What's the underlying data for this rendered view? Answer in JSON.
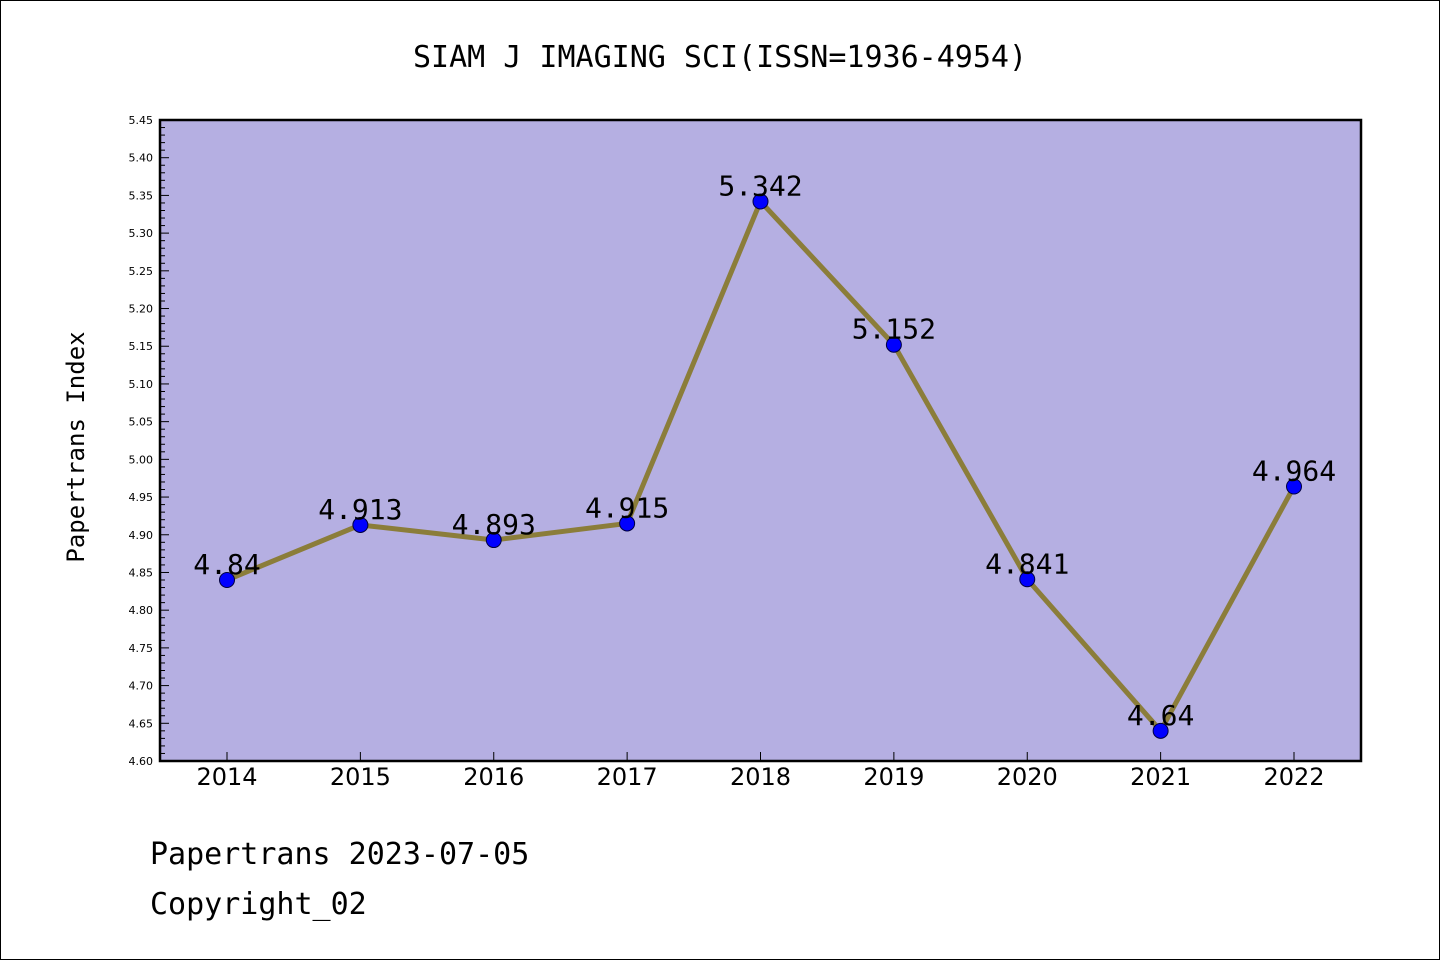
{
  "chart_data": {
    "type": "line",
    "title": "SIAM J IMAGING SCI(ISSN=1936-4954)",
    "ylabel": "Papertrans Index",
    "xlabel": "",
    "categories": [
      "2014",
      "2015",
      "2016",
      "2017",
      "2018",
      "2019",
      "2020",
      "2021",
      "2022"
    ],
    "values": [
      4.84,
      4.913,
      4.893,
      4.915,
      5.342,
      5.152,
      4.841,
      4.64,
      4.964
    ],
    "data_labels": [
      "4.84",
      "4.913",
      "4.893",
      "4.915",
      "5.342",
      "5.152",
      "4.841",
      "4.64",
      "4.964"
    ],
    "ylim": [
      4.6,
      5.45
    ],
    "yticks": [
      "4.60",
      "4.65",
      "4.70",
      "4.75",
      "4.80",
      "4.85",
      "4.90",
      "4.95",
      "5.00",
      "5.05",
      "5.10",
      "5.15",
      "5.20",
      "5.25",
      "5.30",
      "5.35",
      "5.40",
      "5.45"
    ],
    "grid": false,
    "colors": {
      "plot_background": "#b5afe2",
      "line": "#8b7d3a",
      "marker": "#0000ff"
    }
  },
  "footer": {
    "line1": "Papertrans 2023-07-05",
    "line2": "Copyright_02"
  }
}
